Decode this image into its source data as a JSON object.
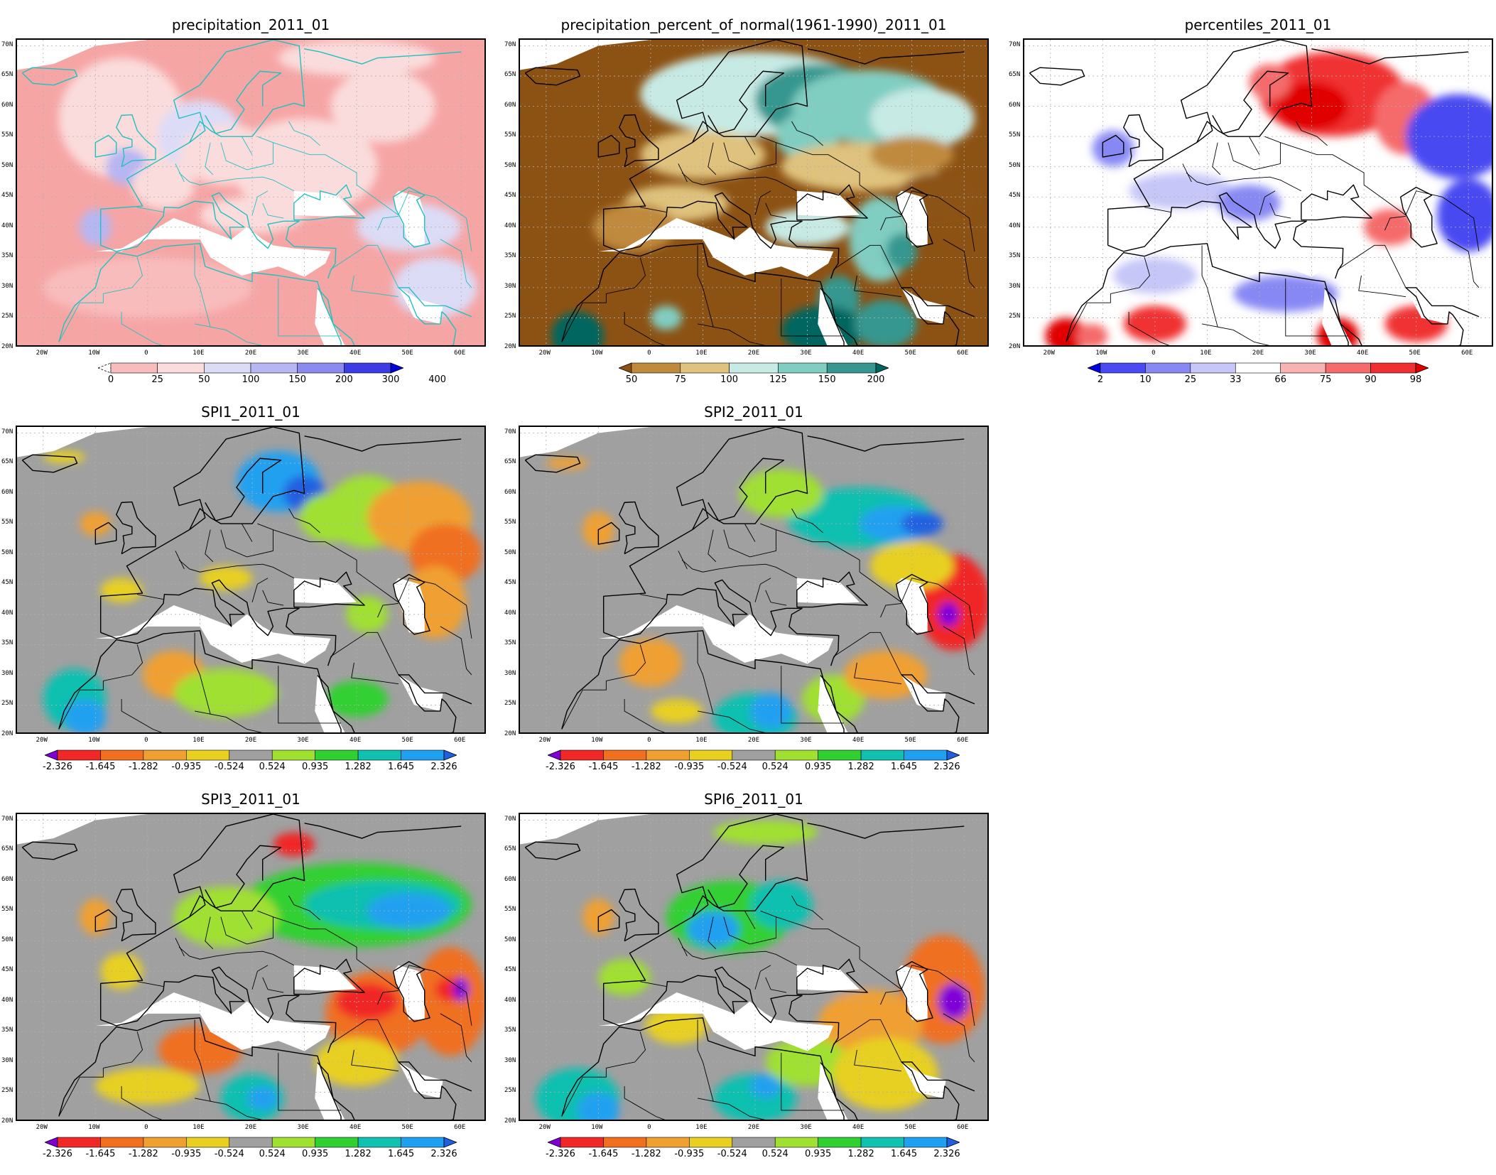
{
  "panels": [
    {
      "id": "precip",
      "title": "precipitation_2011_01",
      "scheme": "precip",
      "legend": {
        "labels": [
          "0",
          "25",
          "50",
          "100",
          "150",
          "200",
          "300",
          "400"
        ],
        "colors": [
          "#f8a0a0",
          "#f9bcbc",
          "#fbdcdc",
          "#dcdcf7",
          "#b6b6f3",
          "#8a8aef",
          "#3c3ce6",
          "#0000d8"
        ],
        "left_arrow": false
      }
    },
    {
      "id": "pnorm",
      "title": "precipitation_percent_of_normal(1961-1990)_2011_01",
      "scheme": "pnorm",
      "legend": {
        "labels": [
          "50",
          "75",
          "100",
          "125",
          "150",
          "200"
        ],
        "colors": [
          "#8c5214",
          "#bf8a3c",
          "#dfc27d",
          "#c7eae5",
          "#80cdc1",
          "#35978f",
          "#01665e"
        ],
        "left_arrow": true
      }
    },
    {
      "id": "pctl",
      "title": "percentiles_2011_01",
      "scheme": "pctl",
      "legend": {
        "labels": [
          "2",
          "10",
          "25",
          "33",
          "66",
          "75",
          "90",
          "98"
        ],
        "colors": [
          "#0000e0",
          "#4a4af2",
          "#8888f4",
          "#c6c6f8",
          "#ffffff",
          "#f9b2b2",
          "#f56b6b",
          "#f03030",
          "#e00000"
        ],
        "left_arrow": true
      }
    },
    {
      "id": "spi1",
      "title": "SPI1_2011_01",
      "scheme": "spi1"
    },
    {
      "id": "spi2",
      "title": "SPI2_2011_01",
      "scheme": "spi2"
    },
    {
      "id": "spi3",
      "title": "SPI3_2011_01",
      "scheme": "spi3"
    },
    {
      "id": "spi6",
      "title": "SPI6_2011_01",
      "scheme": "spi6"
    }
  ],
  "spi_legend": {
    "labels": [
      "-2.326",
      "-1.645",
      "-1.282",
      "-0.935",
      "-0.524",
      "0.524",
      "0.935",
      "1.282",
      "1.645",
      "2.326"
    ],
    "colors": [
      "#8000d8",
      "#f02828",
      "#f07020",
      "#f0a030",
      "#e8d020",
      "#a0a0a0",
      "#a0e030",
      "#30d030",
      "#10c0b0",
      "#20a0f0",
      "#2060e0"
    ]
  },
  "axes": {
    "lat_labels": [
      "70N",
      "65N",
      "60N",
      "55N",
      "50N",
      "45N",
      "40N",
      "35N",
      "30N",
      "25N",
      "20N"
    ],
    "lon_labels": [
      "20W",
      "10W",
      "0",
      "10E",
      "20E",
      "30E",
      "40E",
      "50E",
      "60E"
    ]
  },
  "colors": {
    "land_outline": "#000000",
    "precip_outline": "#20c0c0",
    "missing": "#ffffff"
  }
}
